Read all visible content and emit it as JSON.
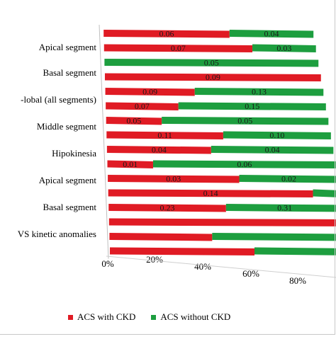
{
  "chart_data": {
    "type": "bar",
    "orientation": "horizontal",
    "stacked": "100%",
    "categories": [
      "Apical segment",
      "",
      "Basal segment",
      "",
      "-lobal (all segments)",
      "",
      "Middle segment",
      "",
      "Hipokinesia",
      "",
      "Apical segment",
      "",
      "Basal segment",
      "",
      "VS kinetic anomalies",
      ""
    ],
    "series": [
      {
        "name": "ACS with CKD",
        "color": "#e01b24",
        "values": [
          0.6,
          0.7,
          0.0,
          1.0,
          0.41,
          0.33,
          0.25,
          0.52,
          0.46,
          0.2,
          0.57,
          0.88,
          0.5,
          1.0,
          0.43,
          0.6
        ],
        "labels": [
          "0.06",
          "0.07",
          "0.00",
          "0.09",
          "0.09",
          "0.07",
          "0.05",
          "0.11",
          "0.04",
          "0.01",
          "0.03",
          "0.14",
          "0.23",
          "",
          "",
          ""
        ]
      },
      {
        "name": "ACS without CKD",
        "color": "#1d9e3f",
        "values": [
          0.4,
          0.3,
          1.0,
          0.0,
          0.59,
          0.67,
          0.75,
          0.48,
          0.54,
          0.8,
          0.43,
          0.12,
          0.5,
          0.0,
          0.57,
          0.4
        ],
        "labels": [
          "0.04",
          "0.03",
          "0.05",
          "",
          "0.13",
          "0.15",
          "0.05",
          "0.10",
          "0.04",
          "0.06",
          "0.02",
          "",
          "0.31",
          "",
          "",
          ""
        ]
      }
    ],
    "x_ticks": [
      "0%",
      "20%",
      "40%",
      "60%",
      "80%"
    ],
    "xlim": [
      0,
      1
    ],
    "legend_position": "bottom",
    "grid": false
  }
}
